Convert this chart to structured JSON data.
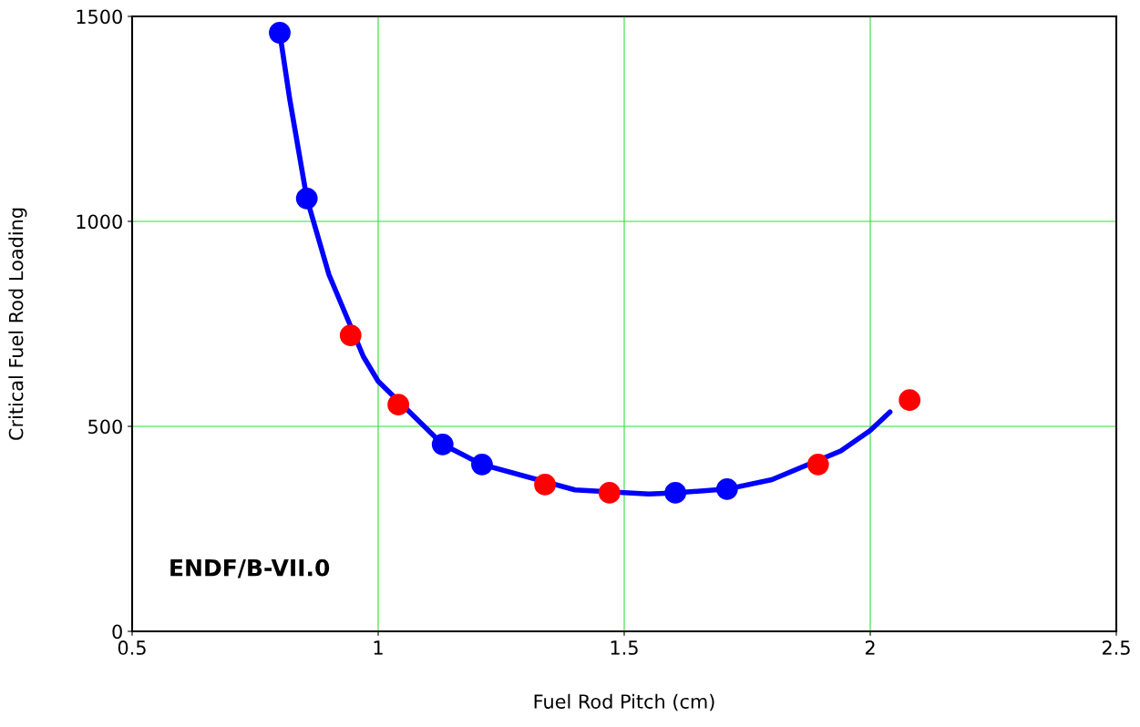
{
  "chart_data": {
    "type": "scatter",
    "xlabel": "Fuel Rod Pitch (cm)",
    "ylabel": "Critical Fuel Rod Loading",
    "xlim": [
      0.5,
      2.5
    ],
    "xticks": [
      0.5,
      1,
      1.5,
      2,
      2.5
    ],
    "ylim": [
      0,
      1500
    ],
    "yticks": [
      0,
      500,
      1000,
      1500
    ],
    "grid": true,
    "marker": "circle",
    "annotations": [
      "ENDF/B-VII.0"
    ],
    "series": [
      {
        "type": "line",
        "color": "#0000ff",
        "marker": "none",
        "x": [
          0.8,
          0.82,
          0.855,
          0.9,
          0.97,
          1.0,
          1.131,
          1.211,
          1.4,
          1.55,
          1.604,
          1.709,
          1.8,
          1.94,
          2.0,
          2.04
        ],
        "values": [
          1460,
          1300,
          1056,
          870,
          670,
          610,
          456,
          407,
          345,
          335,
          338,
          347,
          370,
          440,
          490,
          535
        ]
      },
      {
        "color": "#0000ff",
        "x": [
          0.8,
          0.855,
          1.131,
          1.211,
          1.604,
          1.709
        ],
        "values": [
          1460,
          1056,
          456,
          407,
          338,
          347
        ]
      },
      {
        "color": "#ff0000",
        "x": [
          0.944,
          1.041,
          1.339,
          1.47,
          1.894,
          2.08
        ],
        "values": [
          722,
          553,
          358,
          338,
          407,
          564
        ]
      }
    ]
  }
}
